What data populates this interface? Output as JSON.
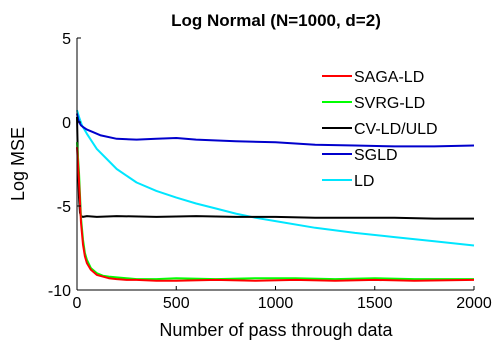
{
  "chart_data": {
    "type": "line",
    "title": "Log Normal (N=1000, d=2)",
    "xlabel": "Number of pass through data",
    "ylabel": "Log MSE",
    "xlim": [
      0,
      2000
    ],
    "ylim": [
      -10,
      5
    ],
    "xticks": [
      0,
      500,
      1000,
      1500,
      2000
    ],
    "yticks": [
      5,
      0,
      -5,
      -10
    ],
    "grid": false,
    "legend_position": "top-right",
    "series": [
      {
        "name": "SAGA-LD",
        "color": "#ff0000",
        "x": [
          0,
          10,
          20,
          30,
          40,
          50,
          70,
          100,
          130,
          160,
          200,
          250,
          300,
          400,
          500,
          700,
          900,
          1100,
          1300,
          1500,
          1700,
          2000
        ],
        "y": [
          -1.5,
          -3.5,
          -6.0,
          -7.3,
          -8.0,
          -8.4,
          -8.8,
          -9.1,
          -9.2,
          -9.3,
          -9.35,
          -9.4,
          -9.4,
          -9.45,
          -9.45,
          -9.4,
          -9.45,
          -9.4,
          -9.45,
          -9.4,
          -9.45,
          -9.4
        ]
      },
      {
        "name": "SVRG-LD",
        "color": "#00ff00",
        "x": [
          0,
          10,
          20,
          30,
          40,
          50,
          70,
          100,
          130,
          160,
          200,
          250,
          300,
          400,
          500,
          700,
          900,
          1100,
          1300,
          1500,
          1700,
          2000
        ],
        "y": [
          -1.2,
          -3.0,
          -5.7,
          -7.0,
          -7.8,
          -8.2,
          -8.7,
          -9.0,
          -9.15,
          -9.2,
          -9.25,
          -9.3,
          -9.35,
          -9.35,
          -9.3,
          -9.35,
          -9.3,
          -9.3,
          -9.35,
          -9.3,
          -9.35,
          -9.35
        ]
      },
      {
        "name": "CV-LD/ULD",
        "color": "#000000",
        "x": [
          0,
          5,
          10,
          15,
          20,
          30,
          50,
          100,
          200,
          400,
          600,
          800,
          1000,
          1200,
          1400,
          1600,
          1800,
          2000
        ],
        "y": [
          0.3,
          -2.5,
          -4.5,
          -5.4,
          -5.6,
          -5.65,
          -5.6,
          -5.65,
          -5.6,
          -5.65,
          -5.6,
          -5.65,
          -5.65,
          -5.7,
          -5.7,
          -5.7,
          -5.75,
          -5.75
        ]
      },
      {
        "name": "SGLD",
        "color": "#0000cc",
        "x": [
          0,
          5,
          10,
          20,
          30,
          50,
          80,
          120,
          200,
          300,
          400,
          500,
          600,
          800,
          1000,
          1200,
          1400,
          1600,
          1800,
          2000
        ],
        "y": [
          0.5,
          0.2,
          0.0,
          -0.2,
          -0.3,
          -0.45,
          -0.6,
          -0.8,
          -1.0,
          -1.05,
          -1.0,
          -0.95,
          -1.05,
          -1.15,
          -1.2,
          -1.35,
          -1.4,
          -1.45,
          -1.45,
          -1.4
        ]
      },
      {
        "name": "LD",
        "color": "#00e6ff",
        "x": [
          0,
          10,
          25,
          50,
          100,
          150,
          200,
          300,
          400,
          500,
          600,
          700,
          800,
          900,
          1000,
          1200,
          1400,
          1600,
          1800,
          2000
        ],
        "y": [
          0.7,
          0.3,
          -0.2,
          -0.7,
          -1.6,
          -2.2,
          -2.8,
          -3.6,
          -4.1,
          -4.5,
          -4.85,
          -5.15,
          -5.45,
          -5.7,
          -5.9,
          -6.3,
          -6.6,
          -6.85,
          -7.1,
          -7.35
        ]
      }
    ]
  }
}
